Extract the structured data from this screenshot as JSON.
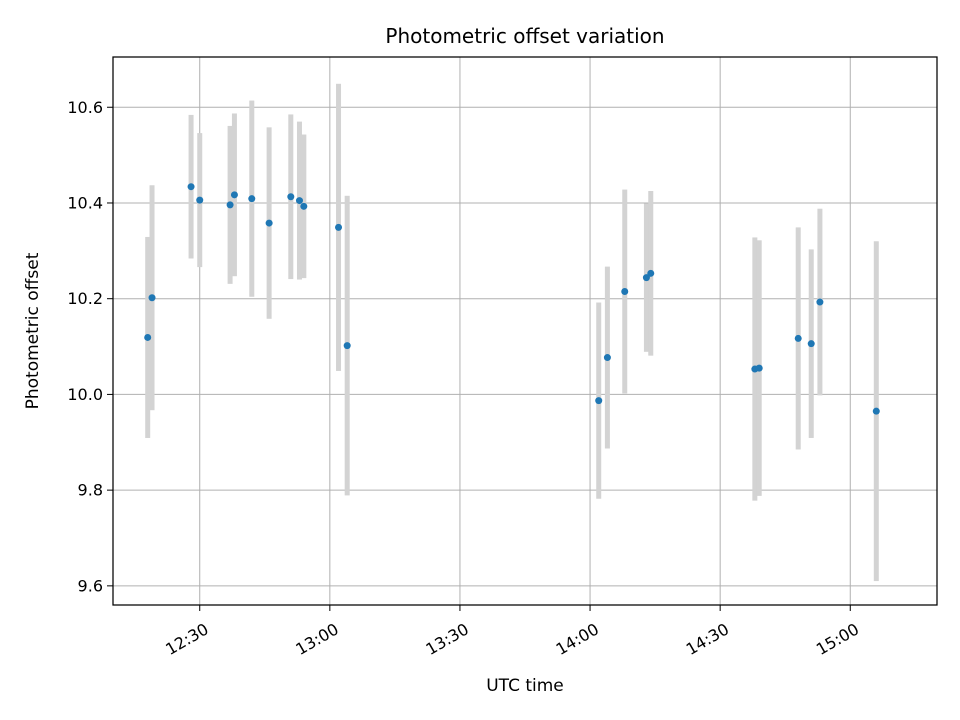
{
  "chart_data": {
    "type": "scatter",
    "title": "Photometric offset variation",
    "xlabel": "UTC time",
    "ylabel": "Photometric offset",
    "x_unit": "minutes",
    "xlim": [
      "12:10",
      "15:20"
    ],
    "ylim": [
      9.56,
      10.705
    ],
    "x_ticks": [
      "12:30",
      "13:00",
      "13:30",
      "14:00",
      "14:30",
      "15:00"
    ],
    "y_ticks": [
      9.6,
      9.8,
      10.0,
      10.2,
      10.4,
      10.6
    ],
    "y_tick_labels": [
      "9.6",
      "9.8",
      "10.0",
      "10.2",
      "10.4",
      "10.6"
    ],
    "grid": true,
    "colors": {
      "point": "#1f77b4",
      "errorbar": "#d3d3d3",
      "grid": "#b0b0b0"
    },
    "points": [
      {
        "x": "12:18",
        "y": 10.119,
        "err": 0.21
      },
      {
        "x": "12:19",
        "y": 10.202,
        "err": 0.235
      },
      {
        "x": "12:28",
        "y": 10.434,
        "err": 0.15
      },
      {
        "x": "12:30",
        "y": 10.406,
        "err": 0.14
      },
      {
        "x": "12:37",
        "y": 10.396,
        "err": 0.165
      },
      {
        "x": "12:38",
        "y": 10.417,
        "err": 0.17
      },
      {
        "x": "12:42",
        "y": 10.409,
        "err": 0.205
      },
      {
        "x": "12:46",
        "y": 10.358,
        "err": 0.2
      },
      {
        "x": "12:51",
        "y": 10.413,
        "err": 0.172
      },
      {
        "x": "12:53",
        "y": 10.405,
        "err": 0.165
      },
      {
        "x": "12:54",
        "y": 10.393,
        "err": 0.15
      },
      {
        "x": "13:02",
        "y": 10.349,
        "err": 0.3
      },
      {
        "x": "13:04",
        "y": 10.102,
        "err": 0.313
      },
      {
        "x": "14:02",
        "y": 9.987,
        "err": 0.205
      },
      {
        "x": "14:04",
        "y": 10.077,
        "err": 0.19
      },
      {
        "x": "14:08",
        "y": 10.215,
        "err": 0.213
      },
      {
        "x": "14:13",
        "y": 10.244,
        "err": 0.155
      },
      {
        "x": "14:14",
        "y": 10.253,
        "err": 0.172
      },
      {
        "x": "14:38",
        "y": 10.053,
        "err": 0.275
      },
      {
        "x": "14:39",
        "y": 10.055,
        "err": 0.267
      },
      {
        "x": "14:48",
        "y": 10.117,
        "err": 0.232
      },
      {
        "x": "14:51",
        "y": 10.106,
        "err": 0.197
      },
      {
        "x": "14:53",
        "y": 10.193,
        "err": 0.195
      },
      {
        "x": "15:06",
        "y": 9.965,
        "err": 0.355
      }
    ]
  }
}
